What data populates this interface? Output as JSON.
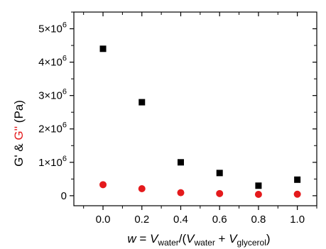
{
  "chart_data": {
    "type": "scatter",
    "x": [
      0.0,
      0.2,
      0.4,
      0.6,
      0.8,
      1.0
    ],
    "series": [
      {
        "marker": "square",
        "color": "#000000",
        "values": [
          4400000,
          2800000,
          1000000,
          680000,
          300000,
          480000
        ]
      },
      {
        "marker": "circle",
        "color": "#e41a1c",
        "values": [
          330000,
          210000,
          90000,
          65000,
          40000,
          45000
        ]
      }
    ],
    "xlim": [
      -0.15,
      1.1
    ],
    "ylim": [
      -300000,
      5500000
    ],
    "xticks": [
      0.0,
      0.2,
      0.4,
      0.6,
      0.8,
      1.0
    ],
    "xtick_labels": [
      "0.0",
      "0.2",
      "0.4",
      "0.6",
      "0.8",
      "1.0"
    ],
    "yticks": [
      0,
      1000000,
      2000000,
      3000000,
      4000000,
      5000000
    ],
    "ytick_labels": [
      {
        "mantissa": "0",
        "exp": ""
      },
      {
        "mantissa": "1×10",
        "exp": "6"
      },
      {
        "mantissa": "2×10",
        "exp": "6"
      },
      {
        "mantissa": "3×10",
        "exp": "6"
      },
      {
        "mantissa": "4×10",
        "exp": "6"
      },
      {
        "mantissa": "5×10",
        "exp": "6"
      }
    ],
    "ylabel": {
      "part1": "G' & ",
      "part2": "G''",
      "part3": " (Pa)",
      "part2_color": "#e41a1c"
    },
    "xlabel": {
      "w": "w",
      "eq": " = ",
      "V1": "V",
      "sub1": "water",
      "mid": "/(",
      "V2": "V",
      "sub2": "water",
      "plus": " + ",
      "V3": "V",
      "sub3": "glycerol",
      "close": ")"
    },
    "grid": false,
    "legend": "none"
  }
}
